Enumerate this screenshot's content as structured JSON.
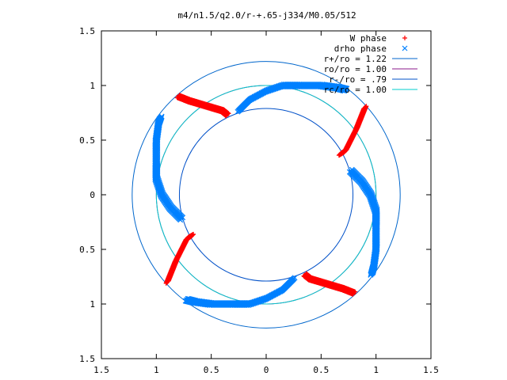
{
  "chart_data": {
    "type": "scatter",
    "title": "m4/n1.5/q2.0/r-+.65-j334/M0.05/512",
    "xlim": [
      -1.5,
      1.5
    ],
    "ylim": [
      -1.5,
      1.5
    ],
    "x_tick_values": [
      -1.5,
      -1,
      -0.5,
      0,
      0.5,
      1,
      1.5
    ],
    "y_tick_values": [
      -1.5,
      -1,
      -0.5,
      0,
      0.5,
      1,
      1.5
    ],
    "x_tick_labels": [
      "1.5",
      "1",
      "0.5",
      "0",
      "0.5",
      "1",
      "1.5"
    ],
    "y_tick_labels": [
      "1.5",
      "1",
      "0.5",
      "0",
      "0.5",
      "1",
      "1.5"
    ],
    "grid": false,
    "legend_position": "top-right",
    "legend": [
      {
        "label": "W phase",
        "kind": "points",
        "marker": "+",
        "color": "#ff0000"
      },
      {
        "label": "drho phase",
        "kind": "points",
        "marker": "x",
        "color": "#0080ff"
      },
      {
        "label": "r+/ro = 1.22",
        "kind": "circle",
        "radius": 1.22,
        "color": "#0066cc"
      },
      {
        "label": "ro/ro = 1.00",
        "kind": "circle",
        "radius": 1.0,
        "color": "#8b1a8b"
      },
      {
        "label": "r-/ro = .79",
        "kind": "circle",
        "radius": 0.79,
        "color": "#0050c8"
      },
      {
        "label": "rc/ro = 1.00",
        "kind": "circle",
        "radius": 1.0,
        "color": "#00cccc"
      }
    ],
    "series": [
      {
        "name": "W phase",
        "marker": "+",
        "color": "#ff0000",
        "points": [
          [
            -0.8,
            0.9
          ],
          [
            -0.7,
            0.86
          ],
          [
            -0.6,
            0.83
          ],
          [
            -0.5,
            0.8
          ],
          [
            -0.4,
            0.77
          ],
          [
            -0.35,
            0.73
          ],
          [
            0.9,
            0.8
          ],
          [
            0.86,
            0.7
          ],
          [
            0.82,
            0.6
          ],
          [
            0.77,
            0.5
          ],
          [
            0.72,
            0.4
          ],
          [
            0.67,
            0.37
          ],
          [
            0.8,
            -0.9
          ],
          [
            0.7,
            -0.86
          ],
          [
            0.6,
            -0.83
          ],
          [
            0.5,
            -0.8
          ],
          [
            0.4,
            -0.77
          ],
          [
            0.35,
            -0.73
          ],
          [
            -0.9,
            -0.8
          ],
          [
            -0.86,
            -0.7
          ],
          [
            -0.82,
            -0.6
          ],
          [
            -0.77,
            -0.5
          ],
          [
            -0.72,
            -0.4
          ],
          [
            -0.67,
            -0.37
          ]
        ]
      },
      {
        "name": "drho phase",
        "marker": "x",
        "color": "#0080ff",
        "points": [
          [
            -0.25,
            0.77
          ],
          [
            -0.15,
            0.87
          ],
          [
            0.0,
            0.95
          ],
          [
            0.15,
            1.0
          ],
          [
            0.3,
            1.0
          ],
          [
            0.5,
            1.0
          ],
          [
            0.65,
            0.98
          ],
          [
            0.73,
            0.96
          ],
          [
            0.77,
            0.22
          ],
          [
            0.87,
            0.12
          ],
          [
            0.95,
            0.0
          ],
          [
            1.0,
            -0.15
          ],
          [
            1.0,
            -0.3
          ],
          [
            1.0,
            -0.5
          ],
          [
            0.98,
            -0.65
          ],
          [
            0.96,
            -0.73
          ],
          [
            0.25,
            -0.77
          ],
          [
            0.15,
            -0.87
          ],
          [
            0.0,
            -0.95
          ],
          [
            -0.15,
            -1.0
          ],
          [
            -0.3,
            -1.0
          ],
          [
            -0.5,
            -1.0
          ],
          [
            -0.65,
            -0.98
          ],
          [
            -0.73,
            -0.96
          ],
          [
            -0.77,
            -0.22
          ],
          [
            -0.87,
            -0.12
          ],
          [
            -0.95,
            0.0
          ],
          [
            -1.0,
            0.15
          ],
          [
            -1.0,
            0.3
          ],
          [
            -1.0,
            0.5
          ],
          [
            -0.98,
            0.65
          ],
          [
            -0.96,
            0.71
          ]
        ]
      }
    ]
  }
}
